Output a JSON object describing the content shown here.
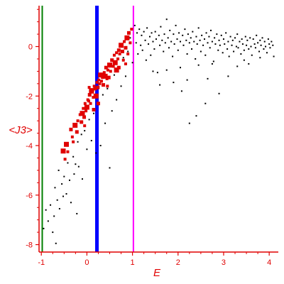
{
  "chart_data": {
    "type": "scatter",
    "title": "",
    "xlabel": "E",
    "ylabel": "<J3>",
    "xlim": [
      -1.05,
      4.2
    ],
    "ylim": [
      -8.3,
      1.65
    ],
    "xticks": [
      -1,
      0,
      1,
      2,
      3,
      4
    ],
    "yticks": [
      -8,
      -6,
      -4,
      -2,
      0
    ],
    "axis_color": "#e00000",
    "grid": false,
    "vertical_lines": [
      {
        "x": -0.98,
        "color": "#008000",
        "weight": "thin"
      },
      {
        "x": 0.22,
        "color": "#0000ff",
        "weight": "thick"
      },
      {
        "x": 1.02,
        "color": "#ff00ff",
        "weight": "thin"
      }
    ],
    "series": [
      {
        "color": "#e00000",
        "points": [
          [
            -0.52,
            -4.22
          ],
          [
            -0.48,
            -4.55
          ],
          [
            -0.42,
            -4.25
          ],
          [
            -0.35,
            -3.35
          ],
          [
            -0.32,
            -3.65
          ],
          [
            -0.26,
            -3.18
          ],
          [
            -0.22,
            -3.45
          ],
          [
            -0.2,
            -3.0
          ],
          [
            -0.15,
            -2.75
          ],
          [
            -0.12,
            -3.05
          ],
          [
            -0.1,
            -2.7
          ],
          [
            -0.08,
            -2.5
          ],
          [
            -0.06,
            -2.85
          ],
          [
            -0.04,
            -2.3
          ],
          [
            -0.02,
            -2.6
          ],
          [
            0.0,
            -2.45
          ],
          [
            0.02,
            -2.15
          ],
          [
            0.04,
            -2.2
          ],
          [
            0.06,
            -1.95
          ],
          [
            0.08,
            -2.3
          ],
          [
            0.1,
            -1.8
          ],
          [
            0.12,
            -1.75
          ],
          [
            0.14,
            -2.05
          ],
          [
            0.16,
            -1.6
          ],
          [
            0.18,
            -1.7
          ],
          [
            0.2,
            -2.0
          ],
          [
            0.22,
            -1.45
          ],
          [
            0.24,
            -1.65
          ],
          [
            0.26,
            -1.35
          ],
          [
            0.28,
            -1.5
          ],
          [
            0.3,
            -1.15
          ],
          [
            0.32,
            -1.4
          ],
          [
            0.34,
            -1.25
          ],
          [
            0.36,
            -1.55
          ],
          [
            0.38,
            -1.05
          ],
          [
            0.4,
            -1.2
          ],
          [
            0.42,
            -0.85
          ],
          [
            0.44,
            -1.3
          ],
          [
            0.46,
            -0.95
          ],
          [
            0.48,
            -1.25
          ],
          [
            0.5,
            -0.75
          ],
          [
            0.52,
            -1.0
          ],
          [
            0.55,
            -0.55
          ],
          [
            0.58,
            -0.8
          ],
          [
            0.6,
            -0.35
          ],
          [
            0.62,
            -0.65
          ],
          [
            0.65,
            -0.25
          ],
          [
            0.68,
            -0.5
          ],
          [
            0.7,
            -0.85
          ],
          [
            0.72,
            -0.3
          ],
          [
            0.75,
            0.05
          ],
          [
            0.78,
            -0.2
          ],
          [
            0.8,
            -0.55
          ],
          [
            0.82,
            0.2
          ],
          [
            0.85,
            -0.05
          ],
          [
            0.88,
            0.35
          ],
          [
            0.9,
            -0.3
          ],
          [
            0.92,
            0.55
          ],
          [
            0.95,
            0.15
          ],
          [
            0.98,
            0.7
          ],
          [
            -0.45,
            -3.95
          ],
          [
            -0.3,
            -3.85
          ],
          [
            0.05,
            -1.65
          ],
          [
            0.25,
            -2.3
          ],
          [
            0.45,
            -1.6
          ],
          [
            0.65,
            -0.95
          ],
          [
            0.7,
            -0.15
          ],
          [
            0.85,
            -0.7
          ],
          [
            -0.05,
            -3.2
          ],
          [
            0.15,
            -2.55
          ]
        ]
      },
      {
        "color": "#000000",
        "points": [
          [
            -0.95,
            -7.35
          ],
          [
            -0.9,
            -6.6
          ],
          [
            -0.85,
            -7.05
          ],
          [
            -0.8,
            -6.4
          ],
          [
            -0.75,
            -7.5
          ],
          [
            -0.72,
            -6.85
          ],
          [
            -0.7,
            -5.7
          ],
          [
            -0.68,
            -7.95
          ],
          [
            -0.65,
            -6.2
          ],
          [
            -0.62,
            -5.0
          ],
          [
            -0.6,
            -6.55
          ],
          [
            -0.55,
            -5.55
          ],
          [
            -0.52,
            -6.05
          ],
          [
            -0.5,
            -5.25
          ],
          [
            -0.45,
            -5.95
          ],
          [
            -0.42,
            -4.7
          ],
          [
            -0.38,
            -5.4
          ],
          [
            -0.35,
            -6.3
          ],
          [
            -0.3,
            -4.45
          ],
          [
            -0.28,
            -5.15
          ],
          [
            -0.25,
            -4.75
          ],
          [
            -0.22,
            -6.75
          ],
          [
            -0.2,
            -3.85
          ],
          [
            -0.18,
            -4.85
          ],
          [
            -0.12,
            -3.55
          ],
          [
            -0.1,
            -5.35
          ],
          [
            -0.05,
            -3.4
          ],
          [
            0.0,
            -4.15
          ],
          [
            0.05,
            -2.95
          ],
          [
            0.1,
            -3.8
          ],
          [
            0.15,
            -2.7
          ],
          [
            0.2,
            -4.3
          ],
          [
            0.25,
            -2.35
          ],
          [
            0.3,
            -4.0
          ],
          [
            0.35,
            -1.95
          ],
          [
            0.4,
            -3.1
          ],
          [
            0.45,
            -1.7
          ],
          [
            0.5,
            -4.9
          ],
          [
            0.55,
            -2.6
          ],
          [
            0.6,
            -1.15
          ],
          [
            0.65,
            -2.15
          ],
          [
            0.7,
            -0.85
          ],
          [
            0.75,
            -1.6
          ],
          [
            0.8,
            -0.45
          ],
          [
            0.85,
            -1.2
          ],
          [
            0.9,
            -0.2
          ],
          [
            0.95,
            0.35
          ],
          [
            1.0,
            -0.65
          ],
          [
            1.05,
            0.85
          ],
          [
            1.08,
            0.15
          ],
          [
            1.1,
            0.55
          ],
          [
            1.12,
            -0.3
          ],
          [
            1.15,
            0.7
          ],
          [
            1.18,
            0.05
          ],
          [
            1.2,
            0.45
          ],
          [
            1.22,
            -0.15
          ],
          [
            1.25,
            0.6
          ],
          [
            1.28,
            0.25
          ],
          [
            1.3,
            -0.55
          ],
          [
            1.32,
            0.75
          ],
          [
            1.35,
            0.1
          ],
          [
            1.38,
            0.4
          ],
          [
            1.4,
            -0.35
          ],
          [
            1.42,
            0.55
          ],
          [
            1.45,
            0.2
          ],
          [
            1.48,
            -0.1
          ],
          [
            1.5,
            0.6
          ],
          [
            1.52,
            0.3
          ],
          [
            1.55,
            -1.05
          ],
          [
            1.58,
            0.45
          ],
          [
            1.6,
            0.05
          ],
          [
            1.62,
            0.8
          ],
          [
            1.65,
            0.25
          ],
          [
            1.68,
            -0.2
          ],
          [
            1.7,
            0.5
          ],
          [
            1.72,
            0.15
          ],
          [
            1.75,
            1.1
          ],
          [
            1.78,
            0.35
          ],
          [
            1.8,
            -0.05
          ],
          [
            1.82,
            0.65
          ],
          [
            1.85,
            0.2
          ],
          [
            1.88,
            -0.4
          ],
          [
            1.9,
            0.5
          ],
          [
            1.92,
            0.1
          ],
          [
            1.95,
            0.85
          ],
          [
            1.98,
            0.3
          ],
          [
            2.0,
            -0.15
          ],
          [
            2.02,
            0.55
          ],
          [
            2.05,
            0.2
          ],
          [
            2.08,
            -1.8
          ],
          [
            2.1,
            0.45
          ],
          [
            2.12,
            0.05
          ],
          [
            2.15,
            0.7
          ],
          [
            2.18,
            0.25
          ],
          [
            2.2,
            -0.3
          ],
          [
            2.22,
            0.5
          ],
          [
            2.25,
            0.15
          ],
          [
            2.28,
            0.35
          ],
          [
            2.3,
            -0.1
          ],
          [
            2.32,
            0.6
          ],
          [
            2.35,
            0.2
          ],
          [
            2.38,
            -0.5
          ],
          [
            2.4,
            0.4
          ],
          [
            2.42,
            0.1
          ],
          [
            2.45,
            0.75
          ],
          [
            2.48,
            0.25
          ],
          [
            2.5,
            -0.2
          ],
          [
            2.52,
            0.45
          ],
          [
            2.55,
            0.05
          ],
          [
            2.58,
            0.3
          ],
          [
            2.6,
            -0.35
          ],
          [
            2.62,
            0.55
          ],
          [
            2.65,
            0.15
          ],
          [
            2.68,
            0.4
          ],
          [
            2.7,
            -0.05
          ],
          [
            2.72,
            0.65
          ],
          [
            2.75,
            0.2
          ],
          [
            2.78,
            -0.6
          ],
          [
            2.8,
            0.35
          ],
          [
            2.82,
            0.1
          ],
          [
            2.85,
            0.5
          ],
          [
            2.88,
            -0.15
          ],
          [
            2.9,
            0.25
          ],
          [
            2.92,
            0.05
          ],
          [
            2.95,
            0.45
          ],
          [
            2.98,
            -0.25
          ],
          [
            3.0,
            0.3
          ],
          [
            3.02,
            0.1
          ],
          [
            3.05,
            0.55
          ],
          [
            3.08,
            -0.1
          ],
          [
            3.1,
            0.2
          ],
          [
            3.12,
            -0.4
          ],
          [
            3.15,
            0.4
          ],
          [
            3.18,
            0.05
          ],
          [
            3.2,
            0.25
          ],
          [
            3.22,
            -0.2
          ],
          [
            3.25,
            0.35
          ],
          [
            3.28,
            0.0
          ],
          [
            3.3,
            0.5
          ],
          [
            3.32,
            -0.05
          ],
          [
            3.35,
            0.2
          ],
          [
            3.38,
            -0.3
          ],
          [
            3.4,
            0.3
          ],
          [
            3.42,
            0.1
          ],
          [
            3.45,
            -0.15
          ],
          [
            3.48,
            0.4
          ],
          [
            3.5,
            0.05
          ],
          [
            3.52,
            0.25
          ],
          [
            3.55,
            -0.1
          ],
          [
            3.58,
            0.35
          ],
          [
            3.6,
            0.0
          ],
          [
            3.62,
            -0.35
          ],
          [
            3.65,
            0.3
          ],
          [
            3.68,
            0.1
          ],
          [
            3.7,
            -0.05
          ],
          [
            3.72,
            0.45
          ],
          [
            3.75,
            0.15
          ],
          [
            3.78,
            -0.2
          ],
          [
            3.8,
            0.25
          ],
          [
            3.82,
            0.05
          ],
          [
            3.85,
            0.35
          ],
          [
            3.88,
            -0.1
          ],
          [
            3.9,
            0.2
          ],
          [
            3.92,
            0.0
          ],
          [
            3.95,
            -0.25
          ],
          [
            3.98,
            0.3
          ],
          [
            4.0,
            0.1
          ],
          [
            4.02,
            -0.05
          ],
          [
            4.05,
            0.2
          ],
          [
            4.08,
            0.05
          ],
          [
            2.25,
            -3.1
          ],
          [
            2.4,
            -2.8
          ],
          [
            2.6,
            -2.3
          ],
          [
            2.9,
            -1.9
          ],
          [
            1.6,
            -1.55
          ],
          [
            1.9,
            -1.45
          ],
          [
            2.2,
            -1.35
          ],
          [
            2.65,
            -1.3
          ],
          [
            3.1,
            -1.2
          ],
          [
            3.3,
            -0.8
          ],
          [
            3.55,
            -0.7
          ],
          [
            1.45,
            -1.0
          ],
          [
            1.75,
            -0.95
          ],
          [
            2.05,
            -0.85
          ],
          [
            2.45,
            -0.75
          ],
          [
            2.75,
            -0.7
          ],
          [
            3.45,
            -0.55
          ],
          [
            3.8,
            -0.45
          ],
          [
            4.1,
            -0.4
          ]
        ]
      }
    ]
  }
}
